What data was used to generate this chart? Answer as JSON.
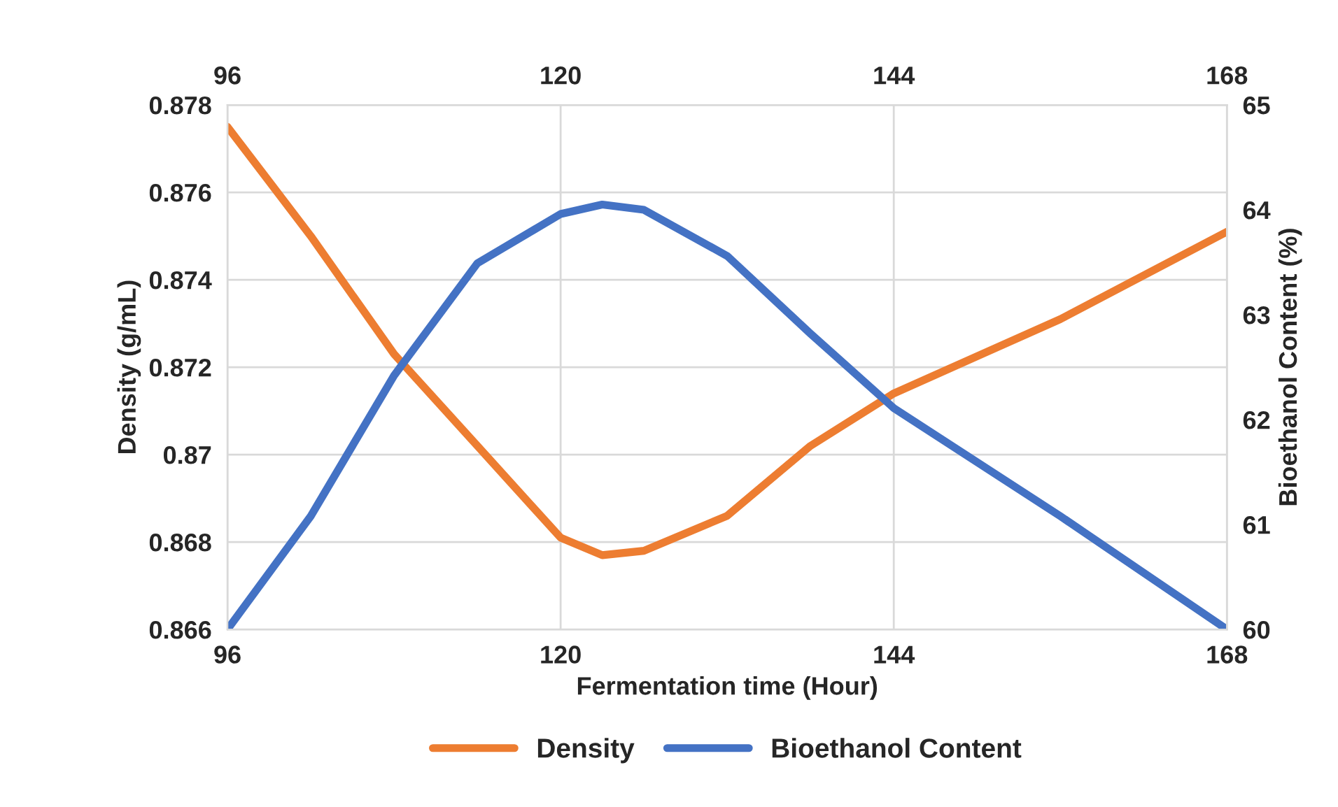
{
  "chart_data": {
    "type": "line",
    "xlabel": "Fermentation time (Hour)",
    "ylabel": "Density (g/mL)",
    "y2label": "Bioethanol Content (%)",
    "xlim": [
      96,
      168
    ],
    "xticks": [
      96,
      120,
      144,
      168
    ],
    "x2lim": [
      96,
      168
    ],
    "x2ticks": [
      96,
      120,
      144,
      168
    ],
    "ylim": [
      0.866,
      0.878
    ],
    "yticks": [
      0.866,
      0.868,
      0.87,
      0.872,
      0.874,
      0.876,
      0.878
    ],
    "y2lim": [
      60,
      65
    ],
    "y2ticks": [
      60,
      61,
      62,
      63,
      64,
      65
    ],
    "grid": true,
    "legend": "bottom",
    "marker": "none",
    "line_style": "solid",
    "series": [
      {
        "name": "Density",
        "color": "#ed7d31",
        "x": [
          96,
          102,
          108,
          114,
          120,
          123,
          126,
          132,
          138,
          144,
          156,
          168
        ],
        "values": [
          0.8775,
          0.875,
          0.8723,
          0.8702,
          0.8681,
          0.8677,
          0.8678,
          0.8686,
          0.8702,
          0.8714,
          0.8731,
          0.8751
        ]
      },
      {
        "name": "Bioethanol Content",
        "color": "#4472c4",
        "axis": "y2",
        "x": [
          96,
          102,
          108,
          114,
          120,
          123,
          126,
          132,
          138,
          144,
          156,
          168
        ],
        "values": [
          60,
          61.08,
          62.42,
          63.49,
          63.96,
          64.05,
          64.0,
          63.56,
          62.82,
          62.11,
          61.08,
          60
        ]
      }
    ]
  }
}
